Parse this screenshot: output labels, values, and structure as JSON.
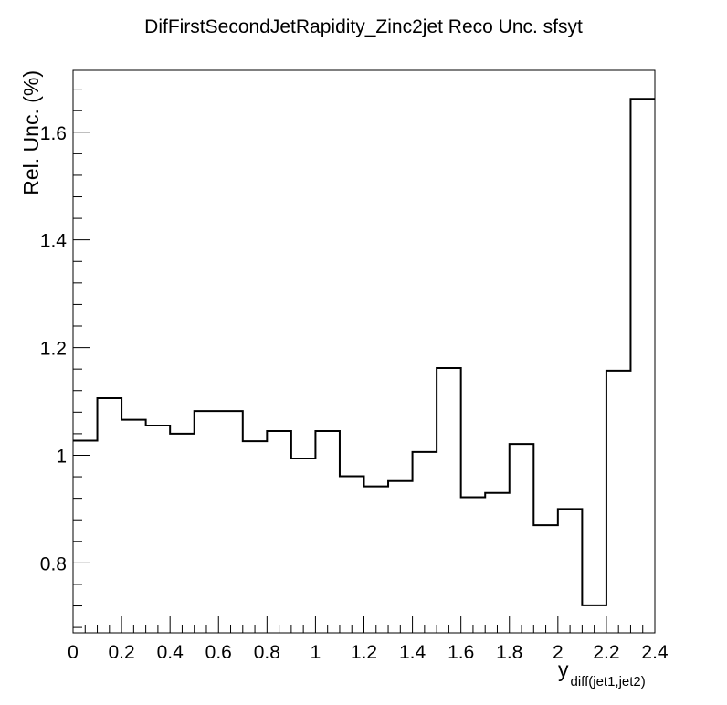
{
  "chart_data": {
    "type": "histogram",
    "title": "DifFirstSecondJetRapidity_Zinc2jet Reco Unc. sfsyt",
    "xlabel": "y",
    "xlabel_subscript": "diff(jet1,jet2)",
    "ylabel": "Rel. Unc. (%)",
    "xlim": [
      0,
      2.4
    ],
    "ylim": [
      0.67,
      1.715
    ],
    "xticks": [
      {
        "v": 0,
        "t": "0"
      },
      {
        "v": 0.2,
        "t": "0.2"
      },
      {
        "v": 0.4,
        "t": "0.4"
      },
      {
        "v": 0.6,
        "t": "0.6"
      },
      {
        "v": 0.8,
        "t": "0.8"
      },
      {
        "v": 1.0,
        "t": "1"
      },
      {
        "v": 1.2,
        "t": "1.2"
      },
      {
        "v": 1.4,
        "t": "1.4"
      },
      {
        "v": 1.6,
        "t": "1.6"
      },
      {
        "v": 1.8,
        "t": "1.8"
      },
      {
        "v": 2.0,
        "t": "2"
      },
      {
        "v": 2.2,
        "t": "2.2"
      },
      {
        "v": 2.4,
        "t": "2.4"
      }
    ],
    "yticks": [
      {
        "v": 0.8,
        "t": "0.8"
      },
      {
        "v": 1.0,
        "t": "1"
      },
      {
        "v": 1.2,
        "t": "1.2"
      },
      {
        "v": 1.4,
        "t": "1.4"
      },
      {
        "v": 1.6,
        "t": "1.6"
      }
    ],
    "bin_edges": [
      0,
      0.1,
      0.2,
      0.3,
      0.4,
      0.5,
      0.6,
      0.7,
      0.8,
      0.9,
      1.0,
      1.1,
      1.2,
      1.3,
      1.4,
      1.5,
      1.6,
      1.7,
      1.8,
      1.9,
      2.0,
      2.1,
      2.2,
      2.3,
      2.4
    ],
    "values": [
      1.027,
      1.106,
      1.066,
      1.055,
      1.04,
      1.082,
      1.082,
      1.026,
      1.045,
      0.994,
      1.045,
      0.961,
      0.942,
      0.952,
      1.006,
      1.162,
      0.922,
      0.93,
      1.021,
      0.87,
      0.9,
      0.721,
      1.157,
      1.662
    ],
    "grid": false,
    "line_color": "#000000"
  }
}
